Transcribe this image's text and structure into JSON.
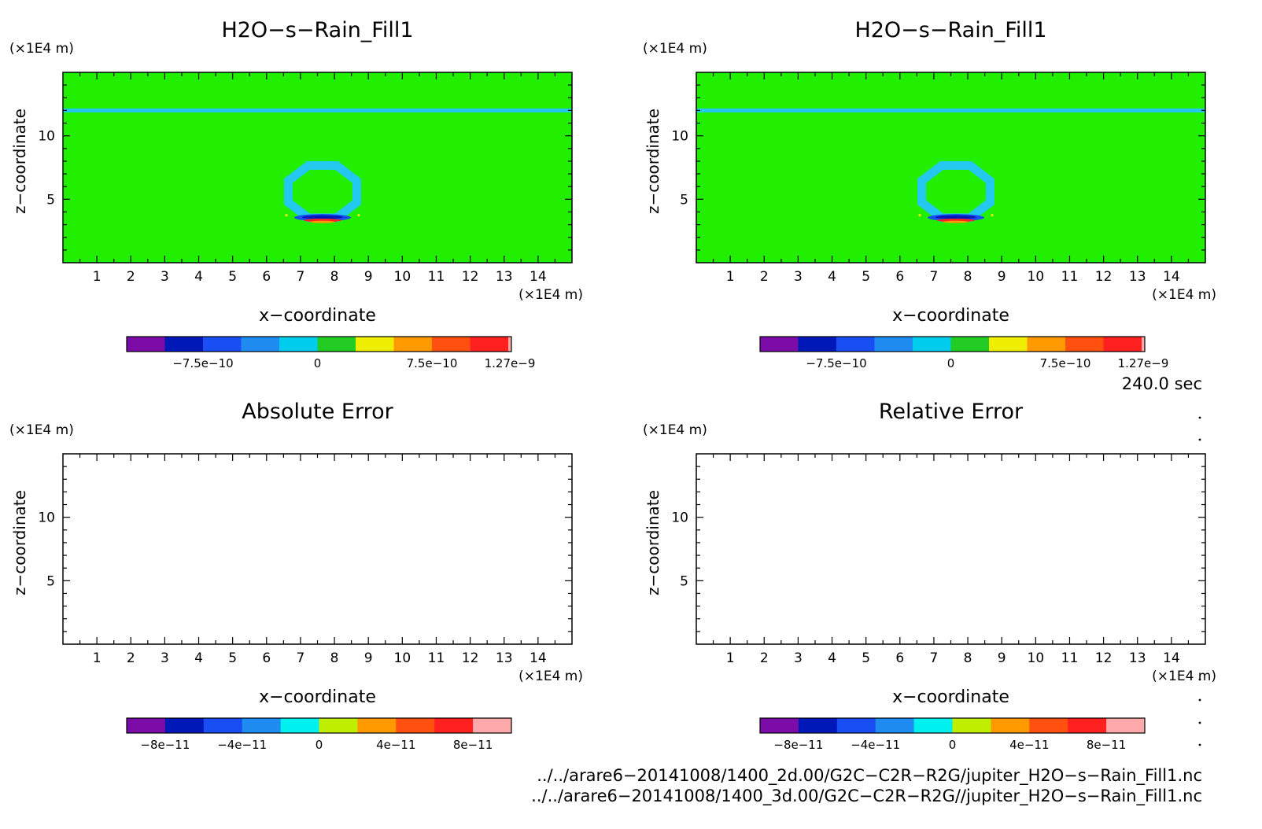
{
  "panels": [
    {
      "id": "tl",
      "title": "H2O−s−Rain_Fill1",
      "field": true,
      "colorbar": {
        "colors": [
          "#7b0ca8",
          "#0018b8",
          "#1a4ef5",
          "#1e8cf0",
          "#00ccee",
          "#22cc22",
          "#f0ee00",
          "#ff9900",
          "#ff5010",
          "#ff2020"
        ],
        "last_narrow": true,
        "labels": [
          "−7.5e−10",
          "0",
          "7.5e−10",
          "1.27e−9"
        ],
        "label_edges": [
          2,
          5,
          8,
          10
        ]
      }
    },
    {
      "id": "tr",
      "title": "H2O−s−Rain_Fill1",
      "field": true,
      "colorbar": {
        "colors": [
          "#7b0ca8",
          "#0018b8",
          "#1a4ef5",
          "#1e8cf0",
          "#00ccee",
          "#22cc22",
          "#f0ee00",
          "#ff9900",
          "#ff5010",
          "#ff2020"
        ],
        "last_narrow": true,
        "labels": [
          "−7.5e−10",
          "0",
          "7.5e−10",
          "1.27e−9"
        ],
        "label_edges": [
          2,
          5,
          8,
          10
        ]
      }
    },
    {
      "id": "bl",
      "title": "Absolute Error",
      "field": false,
      "colorbar": {
        "colors": [
          "#7b0ca8",
          "#0018b8",
          "#1a4ef5",
          "#1e8cf0",
          "#00f0f0",
          "#c0ee00",
          "#ff9900",
          "#ff5010",
          "#ff2020",
          "#ffaaaa"
        ],
        "last_narrow": false,
        "labels": [
          "−8e−11",
          "−4e−11",
          "0",
          "4e−11",
          "8e−11"
        ],
        "label_edges": [
          1,
          3,
          5,
          7,
          9
        ]
      }
    },
    {
      "id": "br",
      "title": "Relative Error",
      "field": false,
      "colorbar": {
        "colors": [
          "#7b0ca8",
          "#0018b8",
          "#1a4ef5",
          "#1e8cf0",
          "#00f0f0",
          "#c0ee00",
          "#ff9900",
          "#ff5010",
          "#ff2020",
          "#ffaaaa"
        ],
        "last_narrow": false,
        "labels": [
          "−8e−11",
          "−4e−11",
          "0",
          "4e−11",
          "8e−11"
        ],
        "label_edges": [
          1,
          3,
          5,
          7,
          9
        ]
      }
    }
  ],
  "axes": {
    "xlabel": "x−coordinate",
    "ylabel": "z−coordinate",
    "unit": "(×1E4 m)",
    "xlim": [
      0,
      15
    ],
    "ylim": [
      0,
      15
    ],
    "xticks": [
      "1",
      "2",
      "3",
      "4",
      "5",
      "6",
      "7",
      "8",
      "9",
      "10",
      "11",
      "12",
      "13",
      "14"
    ],
    "yticks": [
      "5",
      "10"
    ]
  },
  "field_colors": {
    "background": "#22ee00",
    "band": "#22c8f0",
    "blue": "#1a4ef5",
    "navy": "#0018b8",
    "red": "#ff2020",
    "orange": "#ff9900",
    "yellow": "#f0ee00"
  },
  "time_label": "240.0 sec",
  "file_paths": [
    "../../arare6−20141008/1400_2d.00/G2C−C2R−R2G/jupiter_H2O−s−Rain_Fill1.nc",
    "../../arare6−20141008/1400_3d.00/G2C−C2R−R2G//jupiter_H2O−s−Rain_Fill1.nc"
  ],
  "chart_data": [
    {
      "type": "heatmap",
      "title": "H2O−s−Rain_Fill1",
      "xlabel": "x−coordinate",
      "ylabel": "z−coordinate",
      "xlim": [
        0,
        15
      ],
      "ylim": [
        0,
        15
      ],
      "colorbar_ticks": [
        "−7.5e−10",
        "0",
        "7.5e−10",
        "1.27e−9"
      ]
    },
    {
      "type": "heatmap",
      "title": "H2O−s−Rain_Fill1",
      "xlabel": "x−coordinate",
      "ylabel": "z−coordinate",
      "xlim": [
        0,
        15
      ],
      "ylim": [
        0,
        15
      ],
      "colorbar_ticks": [
        "−7.5e−10",
        "0",
        "7.5e−10",
        "1.27e−9"
      ]
    },
    {
      "type": "heatmap",
      "title": "Absolute Error",
      "xlabel": "x−coordinate",
      "ylabel": "z−coordinate",
      "xlim": [
        0,
        15
      ],
      "ylim": [
        0,
        15
      ],
      "colorbar_ticks": [
        "−8e−11",
        "−4e−11",
        "0",
        "4e−11",
        "8e−11"
      ]
    },
    {
      "type": "heatmap",
      "title": "Relative Error",
      "xlabel": "x−coordinate",
      "ylabel": "z−coordinate",
      "xlim": [
        0,
        15
      ],
      "ylim": [
        0,
        15
      ],
      "colorbar_ticks": [
        "−8e−11",
        "−4e−11",
        "0",
        "4e−11",
        "8e−11"
      ]
    }
  ]
}
